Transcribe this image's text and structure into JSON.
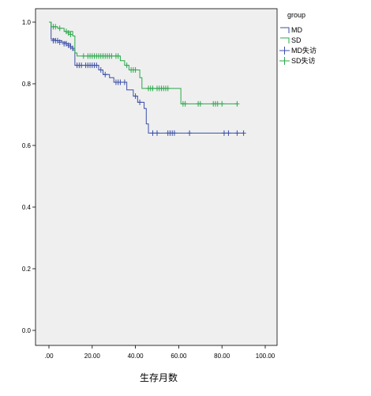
{
  "chart_data": {
    "type": "line",
    "subtype": "kaplan-meier-survival",
    "title": "",
    "xlabel": "生存月数",
    "ylabel": "",
    "xlim": [
      0,
      100
    ],
    "ylim": [
      0,
      1.0
    ],
    "x_ticks": [
      ".00",
      "20.00",
      "40.00",
      "60.00",
      "80.00",
      "100.00"
    ],
    "y_ticks": [
      "0.0",
      "0.2",
      "0.4",
      "0.6",
      "0.8",
      "1.0"
    ],
    "grid": false,
    "plot_background": "#efefef",
    "legend": {
      "title": "group",
      "placement": "top-right outside",
      "entries": [
        "MD",
        "SD",
        "MD失访",
        "SD失访"
      ]
    },
    "series": [
      {
        "name": "MD",
        "color": "#3b4fa8",
        "steps": [
          [
            0,
            1.0
          ],
          [
            1,
            0.945
          ],
          [
            3,
            0.94
          ],
          [
            6,
            0.935
          ],
          [
            8,
            0.93
          ],
          [
            10,
            0.92
          ],
          [
            11,
            0.91
          ],
          [
            12,
            0.86
          ],
          [
            23,
            0.845
          ],
          [
            25,
            0.83
          ],
          [
            28,
            0.82
          ],
          [
            30,
            0.805
          ],
          [
            36,
            0.78
          ],
          [
            39,
            0.76
          ],
          [
            41,
            0.74
          ],
          [
            44,
            0.72
          ],
          [
            45,
            0.67
          ],
          [
            46,
            0.64
          ],
          [
            90,
            0.64
          ]
        ],
        "censored": [
          [
            2,
            0.94
          ],
          [
            3,
            0.94
          ],
          [
            4,
            0.94
          ],
          [
            5,
            0.935
          ],
          [
            7,
            0.93
          ],
          [
            8,
            0.93
          ],
          [
            9,
            0.925
          ],
          [
            10,
            0.92
          ],
          [
            11,
            0.915
          ],
          [
            13,
            0.86
          ],
          [
            14,
            0.86
          ],
          [
            15,
            0.86
          ],
          [
            17,
            0.86
          ],
          [
            18,
            0.86
          ],
          [
            19,
            0.86
          ],
          [
            20,
            0.86
          ],
          [
            21,
            0.86
          ],
          [
            22,
            0.86
          ],
          [
            24,
            0.845
          ],
          [
            26,
            0.83
          ],
          [
            31,
            0.805
          ],
          [
            32,
            0.805
          ],
          [
            33,
            0.805
          ],
          [
            35,
            0.805
          ],
          [
            40,
            0.76
          ],
          [
            42,
            0.74
          ],
          [
            48,
            0.64
          ],
          [
            50,
            0.64
          ],
          [
            55,
            0.64
          ],
          [
            56,
            0.64
          ],
          [
            57,
            0.64
          ],
          [
            58,
            0.64
          ],
          [
            65,
            0.64
          ],
          [
            81,
            0.64
          ],
          [
            83,
            0.64
          ],
          [
            87,
            0.64
          ],
          [
            90,
            0.64
          ]
        ]
      },
      {
        "name": "SD",
        "color": "#2aa84a",
        "steps": [
          [
            0,
            1.0
          ],
          [
            1,
            0.985
          ],
          [
            4,
            0.98
          ],
          [
            7,
            0.97
          ],
          [
            11,
            0.955
          ],
          [
            12,
            0.9
          ],
          [
            13,
            0.89
          ],
          [
            33,
            0.875
          ],
          [
            35,
            0.86
          ],
          [
            37,
            0.845
          ],
          [
            42,
            0.82
          ],
          [
            43,
            0.785
          ],
          [
            61,
            0.735
          ],
          [
            87,
            0.735
          ]
        ],
        "censored": [
          [
            2,
            0.985
          ],
          [
            3,
            0.985
          ],
          [
            5,
            0.98
          ],
          [
            8,
            0.97
          ],
          [
            9,
            0.965
          ],
          [
            10,
            0.96
          ],
          [
            16,
            0.89
          ],
          [
            18,
            0.89
          ],
          [
            19,
            0.89
          ],
          [
            20,
            0.89
          ],
          [
            21,
            0.89
          ],
          [
            22,
            0.89
          ],
          [
            23,
            0.89
          ],
          [
            24,
            0.89
          ],
          [
            25,
            0.89
          ],
          [
            26,
            0.89
          ],
          [
            27,
            0.89
          ],
          [
            28,
            0.89
          ],
          [
            29,
            0.89
          ],
          [
            31,
            0.89
          ],
          [
            32,
            0.89
          ],
          [
            36,
            0.86
          ],
          [
            38,
            0.845
          ],
          [
            39,
            0.845
          ],
          [
            40,
            0.845
          ],
          [
            46,
            0.785
          ],
          [
            47,
            0.785
          ],
          [
            48,
            0.785
          ],
          [
            50,
            0.785
          ],
          [
            51,
            0.785
          ],
          [
            52,
            0.785
          ],
          [
            53,
            0.785
          ],
          [
            54,
            0.785
          ],
          [
            55,
            0.785
          ],
          [
            62,
            0.735
          ],
          [
            63,
            0.735
          ],
          [
            69,
            0.735
          ],
          [
            70,
            0.735
          ],
          [
            76,
            0.735
          ],
          [
            77,
            0.735
          ],
          [
            78,
            0.735
          ],
          [
            80,
            0.735
          ],
          [
            87,
            0.735
          ]
        ]
      }
    ]
  }
}
